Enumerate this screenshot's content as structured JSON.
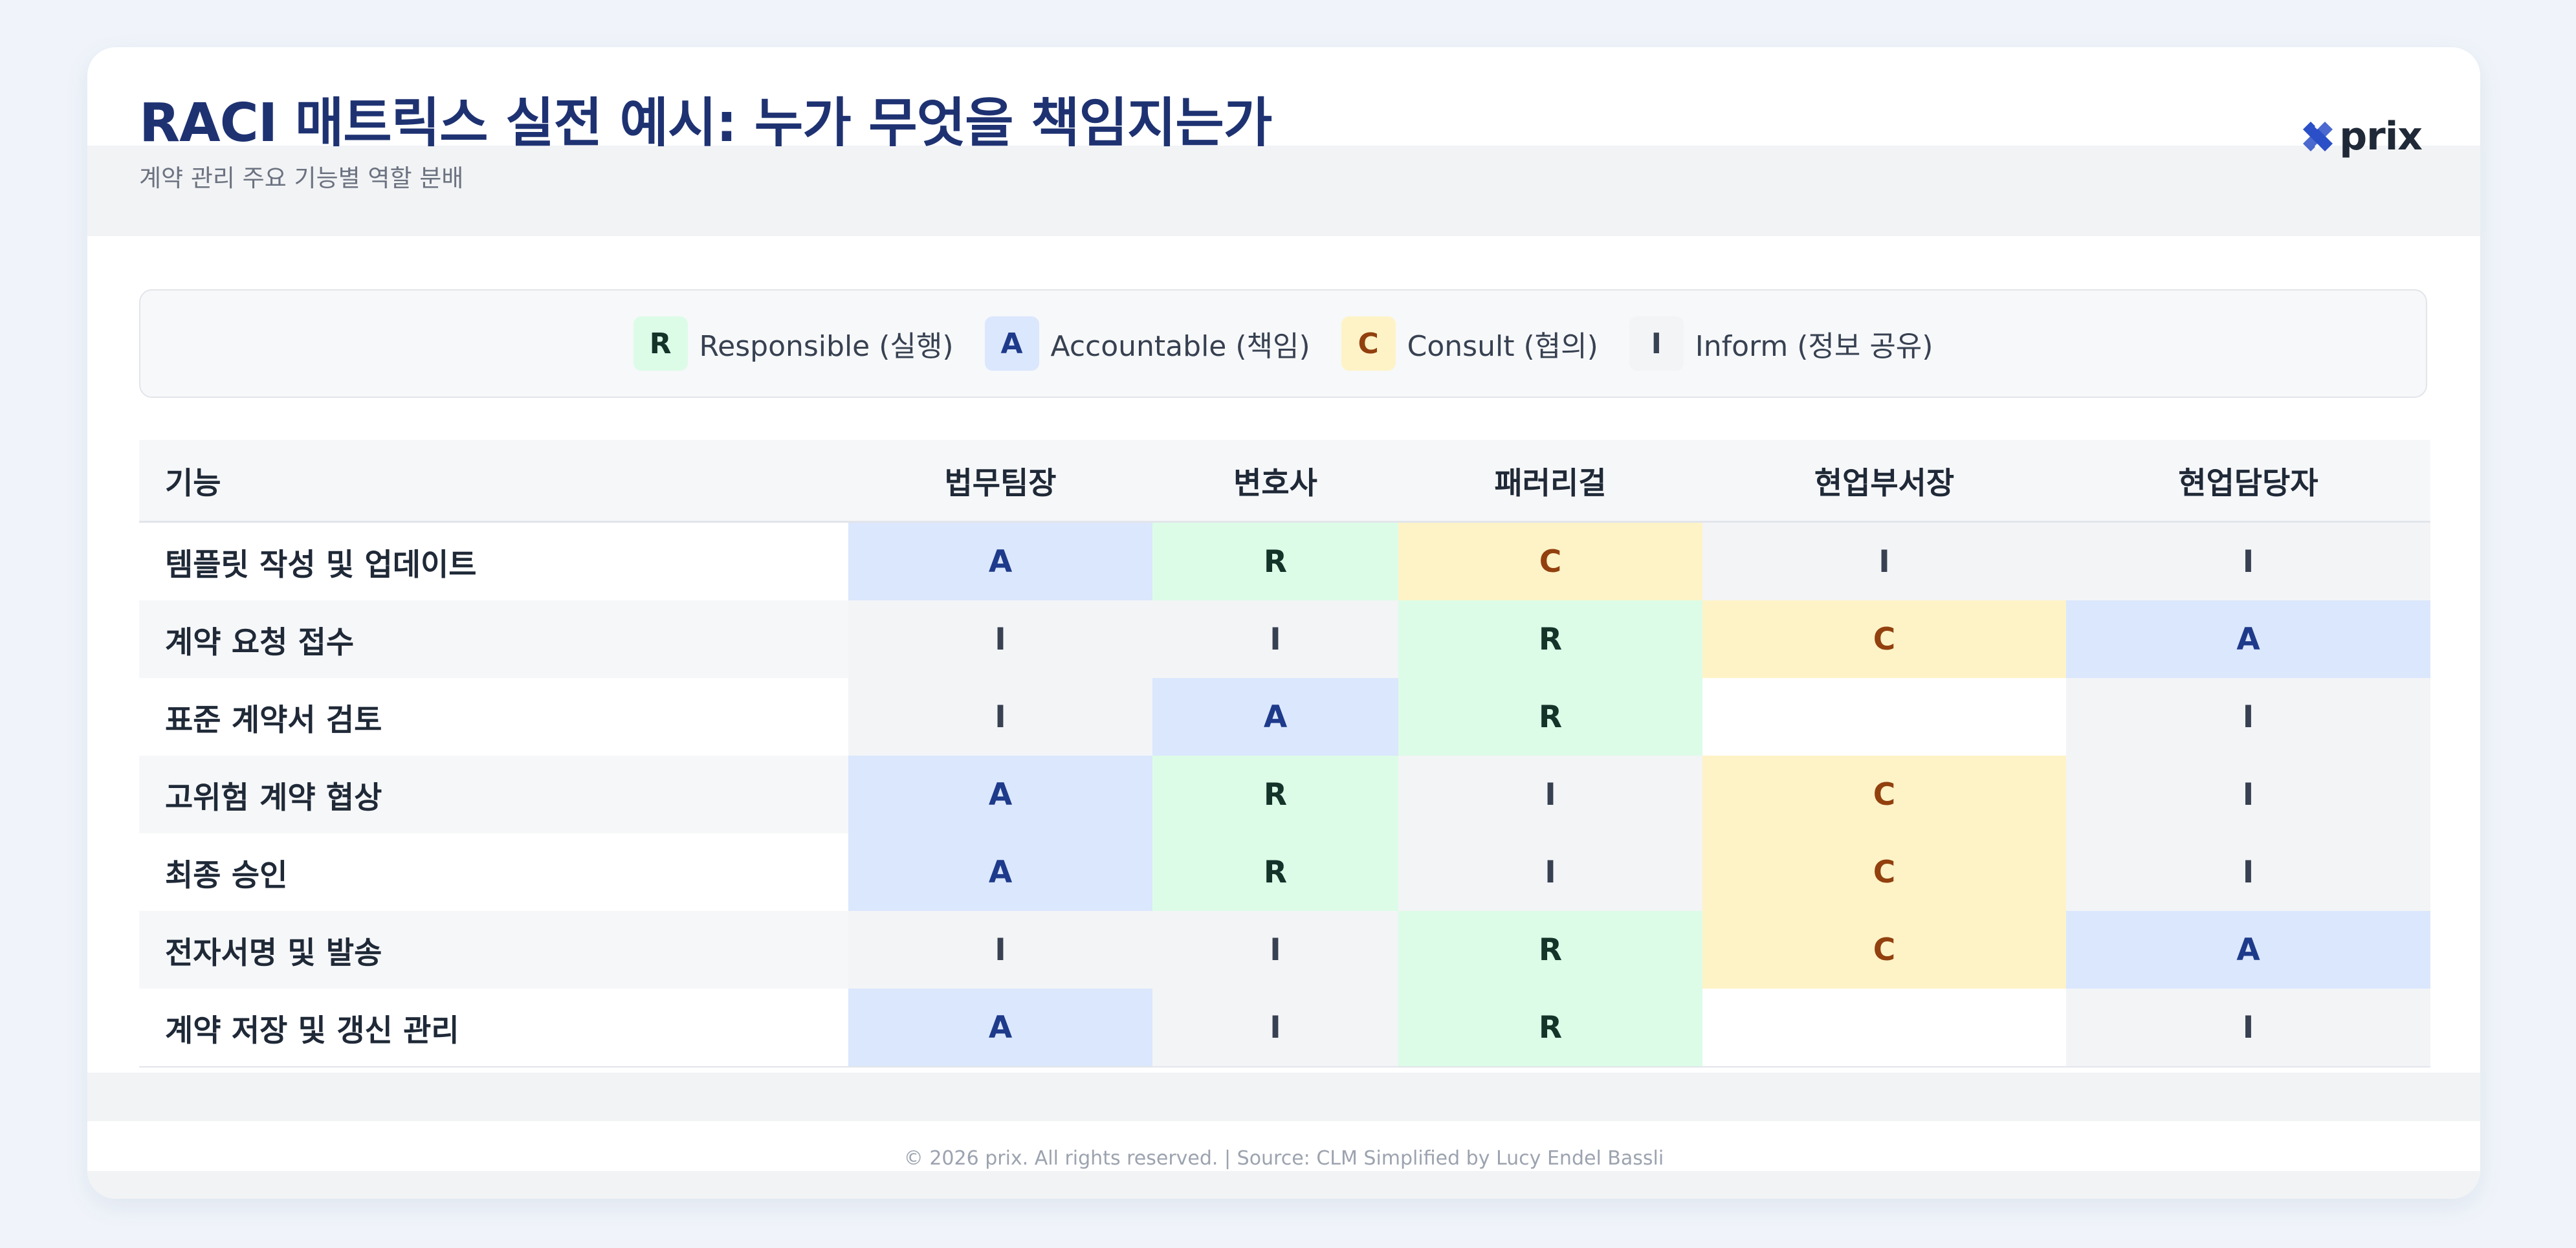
{
  "header": {
    "title": "RACI 매트릭스 실전 예시: 누가 무엇을 책임지는가",
    "subtitle": "계약 관리 주요 기능별 역할 분배",
    "logo_text": "prix"
  },
  "legend": [
    {
      "key": "R",
      "label": "Responsible (실행)"
    },
    {
      "key": "A",
      "label": "Accountable (책임)"
    },
    {
      "key": "C",
      "label": "Consult (협의)"
    },
    {
      "key": "I",
      "label": "Inform (정보 공유)"
    }
  ],
  "colors": {
    "R": {
      "bg": "#dcfce7",
      "fg": "#14342a"
    },
    "A": {
      "bg": "#dbe7fd",
      "fg": "#1e3a8a"
    },
    "C": {
      "bg": "#fef3c7",
      "fg": "#92400e"
    },
    "I": {
      "bg": "#f3f4f6",
      "fg": "#374151"
    },
    "title": "#1e3272"
  },
  "table": {
    "columns": [
      "기능",
      "법무팀장",
      "변호사",
      "패러리걸",
      "현업부서장",
      "현업담당자"
    ],
    "rows": [
      {
        "function": "템플릿 작성 및 업데이트",
        "cells": [
          "A",
          "R",
          "C",
          "I",
          "I"
        ]
      },
      {
        "function": "계약 요청 접수",
        "cells": [
          "I",
          "I",
          "R",
          "C",
          "A"
        ]
      },
      {
        "function": "표준 계약서 검토",
        "cells": [
          "I",
          "A",
          "R",
          "",
          "I"
        ]
      },
      {
        "function": "고위험 계약 협상",
        "cells": [
          "A",
          "R",
          "I",
          "C",
          "I"
        ]
      },
      {
        "function": "최종 승인",
        "cells": [
          "A",
          "R",
          "I",
          "C",
          "I"
        ]
      },
      {
        "function": "전자서명 및 발송",
        "cells": [
          "I",
          "I",
          "R",
          "C",
          "A"
        ]
      },
      {
        "function": "계약 저장 및 갱신 관리",
        "cells": [
          "A",
          "I",
          "R",
          "",
          "I"
        ]
      }
    ]
  },
  "footer": "© 2026 prix. All rights reserved. | Source: CLM Simplified by Lucy Endel Bassli"
}
